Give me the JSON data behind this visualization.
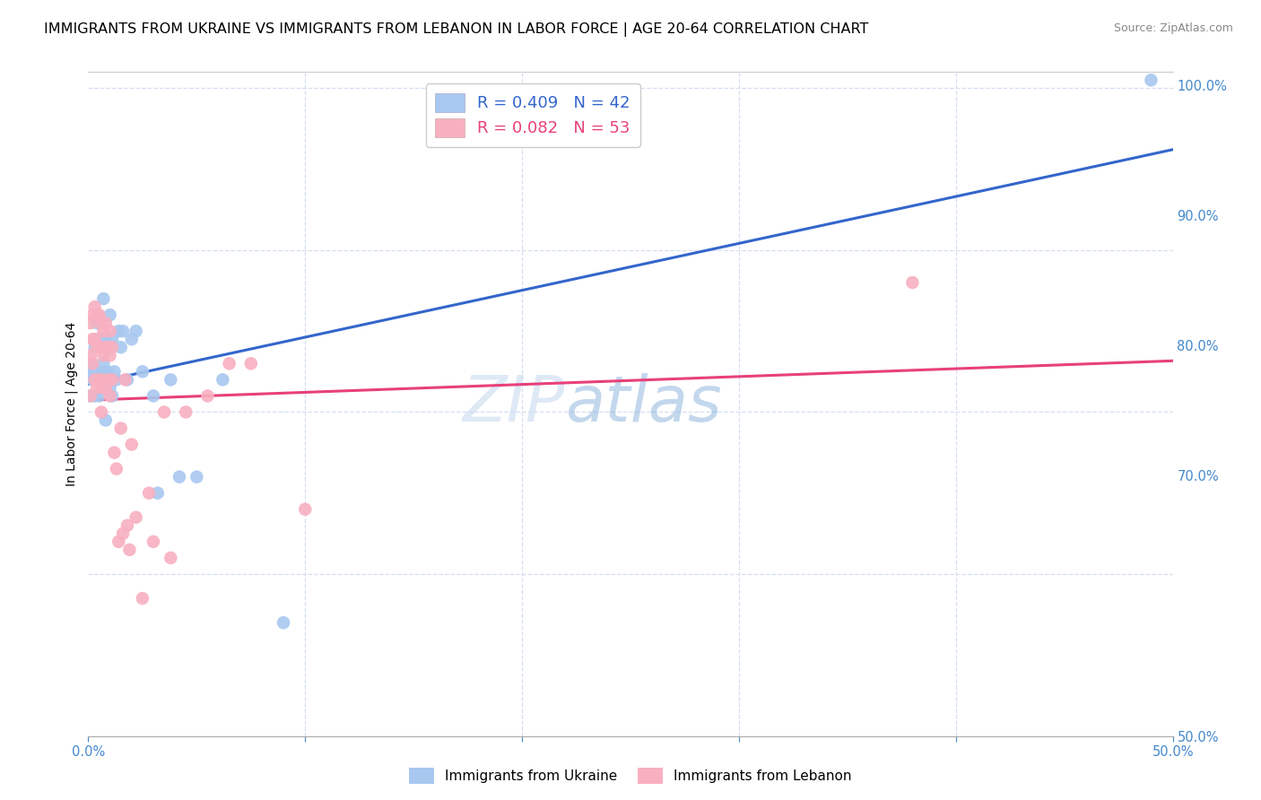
{
  "title": "IMMIGRANTS FROM UKRAINE VS IMMIGRANTS FROM LEBANON IN LABOR FORCE | AGE 20-64 CORRELATION CHART",
  "source": "Source: ZipAtlas.com",
  "ylabel": "In Labor Force | Age 20-64",
  "right_yticks": [
    "100.0%",
    "90.0%",
    "80.0%",
    "70.0%",
    "50.0%"
  ],
  "right_ytick_vals": [
    1.0,
    0.9,
    0.8,
    0.7,
    0.5
  ],
  "watermark_text": "ZIP",
  "watermark_text2": "atlas",
  "ukraine_color": "#a8c8f0",
  "lebanon_color": "#f8b0c0",
  "ukraine_line_color": "#3366cc",
  "lebanon_line_color": "#e8407a",
  "ukraine_x": [
    0.001,
    0.001,
    0.002,
    0.002,
    0.003,
    0.003,
    0.003,
    0.004,
    0.004,
    0.005,
    0.005,
    0.005,
    0.006,
    0.006,
    0.007,
    0.007,
    0.008,
    0.008,
    0.008,
    0.009,
    0.009,
    0.01,
    0.01,
    0.011,
    0.011,
    0.012,
    0.013,
    0.014,
    0.015,
    0.016,
    0.018,
    0.02,
    0.022,
    0.025,
    0.03,
    0.032,
    0.038,
    0.042,
    0.05,
    0.062,
    0.09,
    0.49
  ],
  "ukraine_y": [
    0.825,
    0.81,
    0.83,
    0.82,
    0.84,
    0.825,
    0.81,
    0.855,
    0.82,
    0.845,
    0.825,
    0.81,
    0.84,
    0.82,
    0.87,
    0.83,
    0.845,
    0.825,
    0.795,
    0.84,
    0.825,
    0.86,
    0.815,
    0.845,
    0.81,
    0.825,
    0.82,
    0.85,
    0.84,
    0.85,
    0.82,
    0.845,
    0.85,
    0.825,
    0.81,
    0.75,
    0.82,
    0.76,
    0.76,
    0.82,
    0.67,
    1.005
  ],
  "lebanon_x": [
    0.001,
    0.001,
    0.001,
    0.002,
    0.002,
    0.002,
    0.003,
    0.003,
    0.003,
    0.004,
    0.004,
    0.004,
    0.005,
    0.005,
    0.005,
    0.006,
    0.006,
    0.006,
    0.006,
    0.007,
    0.007,
    0.007,
    0.008,
    0.008,
    0.008,
    0.009,
    0.009,
    0.01,
    0.01,
    0.01,
    0.011,
    0.011,
    0.012,
    0.013,
    0.014,
    0.015,
    0.016,
    0.017,
    0.018,
    0.019,
    0.02,
    0.022,
    0.025,
    0.028,
    0.03,
    0.035,
    0.038,
    0.045,
    0.055,
    0.065,
    0.075,
    0.1,
    0.38
  ],
  "lebanon_y": [
    0.835,
    0.855,
    0.81,
    0.86,
    0.845,
    0.83,
    0.865,
    0.845,
    0.82,
    0.86,
    0.84,
    0.815,
    0.86,
    0.84,
    0.82,
    0.855,
    0.84,
    0.82,
    0.8,
    0.85,
    0.835,
    0.815,
    0.855,
    0.84,
    0.815,
    0.84,
    0.82,
    0.85,
    0.835,
    0.81,
    0.84,
    0.82,
    0.775,
    0.765,
    0.72,
    0.79,
    0.725,
    0.82,
    0.73,
    0.715,
    0.78,
    0.735,
    0.685,
    0.75,
    0.72,
    0.8,
    0.71,
    0.8,
    0.81,
    0.83,
    0.83,
    0.74,
    0.88
  ],
  "xlim": [
    0.0,
    0.5
  ],
  "ylim": [
    0.6,
    1.01
  ],
  "xlim_display": [
    0.0,
    0.5
  ],
  "xticks_only_ends": [
    0.0,
    0.5
  ],
  "xticklabels_ends": [
    "0.0%",
    "50.0%"
  ],
  "xtick_minor_vals": [
    0.1,
    0.2,
    0.3,
    0.4
  ],
  "background_color": "#ffffff",
  "grid_color": "#d4dff0",
  "title_fontsize": 11.5,
  "axis_label_fontsize": 10,
  "tick_fontsize": 10.5,
  "right_tick_color": "#4488cc",
  "bottom_tick_color": "#4488cc",
  "legend_ukraine": "R = 0.409   N = 42",
  "legend_lebanon": "R = 0.082   N = 53"
}
